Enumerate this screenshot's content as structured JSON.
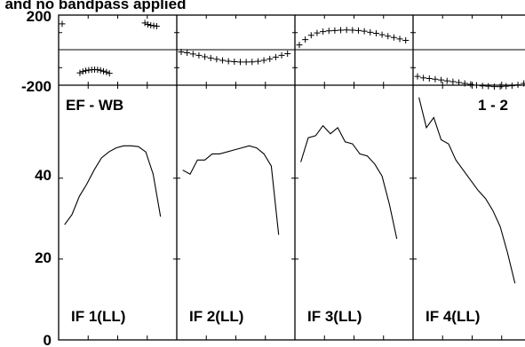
{
  "header": {
    "title": "I and no bandpass applied"
  },
  "labels": {
    "baseline": "EF - WB",
    "pair": "1 - 2"
  },
  "chart_data": [
    {
      "type": "scatter",
      "role": "phase",
      "yticks": [
        "200",
        "-200"
      ],
      "ylim": [
        -200,
        200
      ],
      "xlim": [
        0,
        4
      ],
      "grid": false,
      "panels": [
        {
          "x": [
            0.12,
            0.72,
            0.82,
            0.92,
            1.02,
            1.12,
            1.22,
            1.32,
            1.42,
            1.52,
            1.62,
            1.72,
            2.92,
            3.02,
            3.12,
            3.22,
            3.32
          ],
          "y": [
            150,
            -130,
            -122,
            -117,
            -114,
            -112,
            -111,
            -112,
            -115,
            -120,
            -125,
            -132,
            155,
            147,
            142,
            139,
            137
          ]
        },
        {
          "x": [
            0.15,
            0.35,
            0.55,
            0.75,
            0.95,
            1.15,
            1.35,
            1.55,
            1.75,
            1.95,
            2.15,
            2.35,
            2.55,
            2.75,
            2.95,
            3.15,
            3.35,
            3.55,
            3.75
          ],
          "y": [
            -10,
            -15,
            -22,
            -30,
            -38,
            -45,
            -52,
            -58,
            -63,
            -66,
            -68,
            -68,
            -67,
            -64,
            -58,
            -50,
            -40,
            -30,
            -20
          ]
        },
        {
          "x": [
            0.15,
            0.35,
            0.55,
            0.75,
            0.95,
            1.15,
            1.35,
            1.55,
            1.75,
            1.95,
            2.15,
            2.35,
            2.55,
            2.75,
            2.95,
            3.15,
            3.35,
            3.55,
            3.75
          ],
          "y": [
            30,
            60,
            85,
            98,
            106,
            110,
            112,
            114,
            115,
            114,
            112,
            108,
            102,
            96,
            88,
            80,
            72,
            64,
            56
          ]
        },
        {
          "x": [
            0.15,
            0.35,
            0.55,
            0.75,
            0.95,
            1.15,
            1.35,
            1.55,
            1.75,
            1.95,
            2.15,
            2.35,
            2.55,
            2.75,
            2.95,
            3.15,
            3.35,
            3.55,
            3.75
          ],
          "y": [
            -150,
            -158,
            -162,
            -166,
            -170,
            -175,
            -180,
            -185,
            -190,
            -195,
            -200,
            -204,
            -206,
            -208,
            -208,
            -206,
            -203,
            -198,
            -190
          ]
        }
      ]
    },
    {
      "type": "line",
      "role": "amplitude",
      "yticks": [
        "40",
        "20",
        "0"
      ],
      "ylim": [
        0,
        63
      ],
      "xlim": [
        0,
        4
      ],
      "grid": false,
      "series": [
        {
          "name": "IF 1(LL)",
          "x": [
            0.2,
            0.45,
            0.7,
            0.95,
            1.2,
            1.45,
            1.7,
            1.95,
            2.2,
            2.45,
            2.7,
            2.95,
            3.2,
            3.45
          ],
          "y": [
            28.5,
            31,
            35.5,
            38.5,
            42,
            45,
            46.5,
            47.5,
            48,
            48,
            47.8,
            46.5,
            41,
            30.5
          ]
        },
        {
          "name": "IF 2(LL)",
          "x": [
            0.2,
            0.45,
            0.7,
            0.95,
            1.2,
            1.45,
            1.7,
            1.95,
            2.2,
            2.45,
            2.7,
            2.95,
            3.2,
            3.45
          ],
          "y": [
            42,
            41,
            44.5,
            44.5,
            46,
            46,
            46.5,
            47,
            47.5,
            48,
            47.5,
            46,
            43,
            26
          ]
        },
        {
          "name": "IF 3(LL)",
          "x": [
            0.2,
            0.45,
            0.7,
            0.95,
            1.2,
            1.45,
            1.7,
            1.95,
            2.2,
            2.45,
            2.7,
            2.95,
            3.2,
            3.45
          ],
          "y": [
            44,
            50,
            50.5,
            53,
            51,
            52.5,
            49,
            48.5,
            46,
            45.5,
            43.5,
            40.5,
            33.5,
            25
          ]
        },
        {
          "name": "IF 4(LL)",
          "x": [
            0.2,
            0.45,
            0.7,
            0.95,
            1.2,
            1.45,
            1.7,
            1.95,
            2.2,
            2.45,
            2.7,
            2.95,
            3.2,
            3.45
          ],
          "y": [
            60,
            52.5,
            55,
            49.5,
            48.5,
            44.5,
            42,
            39.5,
            37,
            35,
            32,
            28,
            21.5,
            14
          ]
        }
      ]
    }
  ]
}
